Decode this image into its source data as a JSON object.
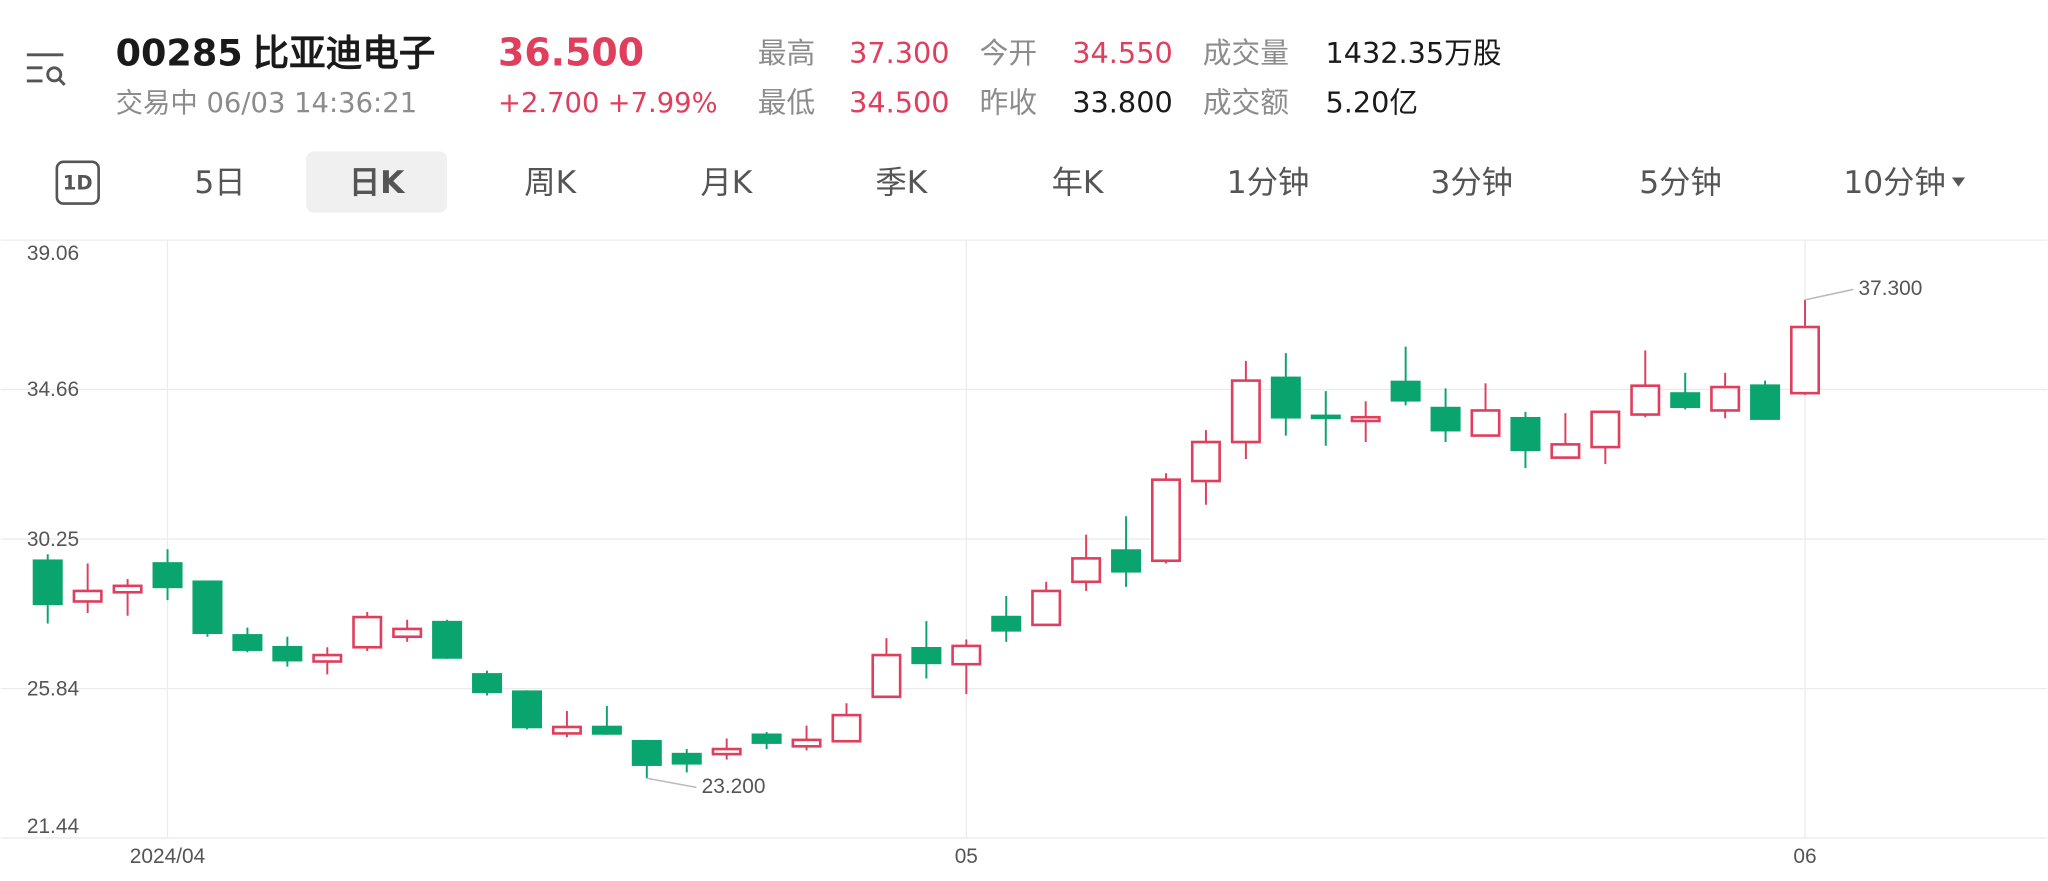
{
  "header": {
    "code": "00285",
    "name": "比亚迪电子",
    "price": "36.500",
    "status": "交易中 06/03 14:36:21",
    "change": "+2.700",
    "change_pct": "+7.99%",
    "stats": [
      {
        "label": "最高",
        "value": "37.300"
      },
      {
        "label": "今开",
        "value": "34.550"
      },
      {
        "label": "成交量",
        "value": "1432.35万股"
      },
      {
        "label": "最低",
        "value": "34.500"
      },
      {
        "label": "昨收",
        "value": "33.800"
      },
      {
        "label": "成交额",
        "value": "5.20亿"
      }
    ]
  },
  "tabs": {
    "icon": "1D",
    "items": [
      {
        "label": "5日",
        "selected": false
      },
      {
        "label": "日K",
        "selected": true
      },
      {
        "label": "周K",
        "selected": false
      },
      {
        "label": "月K",
        "selected": false
      },
      {
        "label": "季K",
        "selected": false
      },
      {
        "label": "年K",
        "selected": false
      },
      {
        "label": "1分钟",
        "selected": false
      },
      {
        "label": "3分钟",
        "selected": false
      },
      {
        "label": "5分钟",
        "selected": false
      },
      {
        "label": "10分钟",
        "selected": false
      }
    ]
  },
  "chart_data": {
    "type": "candlestick",
    "categories": [
      null,
      null,
      null,
      "2024/04",
      null,
      null,
      null,
      null,
      null,
      null,
      null,
      null,
      null,
      null,
      null,
      null,
      null,
      null,
      null,
      null,
      null,
      null,
      null,
      "05",
      null,
      null,
      null,
      null,
      null,
      null,
      null,
      null,
      null,
      null,
      null,
      null,
      null,
      null,
      null,
      null,
      null,
      null,
      null,
      null,
      "06"
    ],
    "open": [
      29.61,
      28.41,
      28.68,
      29.53,
      28.99,
      27.41,
      27.06,
      26.64,
      27.06,
      27.37,
      27.8,
      26.26,
      25.75,
      24.52,
      24.71,
      24.29,
      23.91,
      23.91,
      24.48,
      24.14,
      24.29,
      25.6,
      27.03,
      26.56,
      27.95,
      27.72,
      28.99,
      29.91,
      29.61,
      31.96,
      33.11,
      35.0,
      33.88,
      33.73,
      34.88,
      34.11,
      33.3,
      33.81,
      32.65,
      32.96,
      33.92,
      34.54,
      34.04,
      34.77,
      34.55
    ],
    "high": [
      29.8,
      29.53,
      29.07,
      29.95,
      29.03,
      27.64,
      27.37,
      27.06,
      28.1,
      27.87,
      27.87,
      26.37,
      25.79,
      25.18,
      25.33,
      24.33,
      24.06,
      24.37,
      24.56,
      24.75,
      25.41,
      27.33,
      27.83,
      27.29,
      28.57,
      28.99,
      30.38,
      30.92,
      32.19,
      33.46,
      35.5,
      35.73,
      34.61,
      34.31,
      35.92,
      34.69,
      34.84,
      34.0,
      33.96,
      34.04,
      35.81,
      35.15,
      35.15,
      34.92,
      37.3
    ],
    "low": [
      27.76,
      28.07,
      27.99,
      28.45,
      27.37,
      26.91,
      26.49,
      26.26,
      26.95,
      27.22,
      26.72,
      25.64,
      24.64,
      24.41,
      24.48,
      23.2,
      23.37,
      23.75,
      24.06,
      24.02,
      24.29,
      25.6,
      26.14,
      25.68,
      27.22,
      27.72,
      28.72,
      28.84,
      29.53,
      31.26,
      32.61,
      33.3,
      33.0,
      33.11,
      34.19,
      33.11,
      33.3,
      32.34,
      32.61,
      32.46,
      33.84,
      34.07,
      33.81,
      33.81,
      34.5
    ],
    "close": [
      28.34,
      28.72,
      28.87,
      28.84,
      27.49,
      26.99,
      26.68,
      26.83,
      27.95,
      27.6,
      26.76,
      25.75,
      24.71,
      24.71,
      24.52,
      23.6,
      23.64,
      24.06,
      24.25,
      24.33,
      25.06,
      26.83,
      26.6,
      27.1,
      27.56,
      28.72,
      29.68,
      29.3,
      32.0,
      33.11,
      34.92,
      33.84,
      33.84,
      33.84,
      34.34,
      33.46,
      34.04,
      32.88,
      33.04,
      34.0,
      34.77,
      34.15,
      34.73,
      33.8,
      36.5
    ],
    "up_color": "#df3f5d",
    "down_color": "#0aa46e",
    "high_label": "37.300",
    "low_label": "23.200",
    "ylim": [
      21.44,
      39.06
    ],
    "yticks": [
      39.06,
      34.66,
      30.25,
      25.84,
      21.44
    ],
    "grid": true
  }
}
